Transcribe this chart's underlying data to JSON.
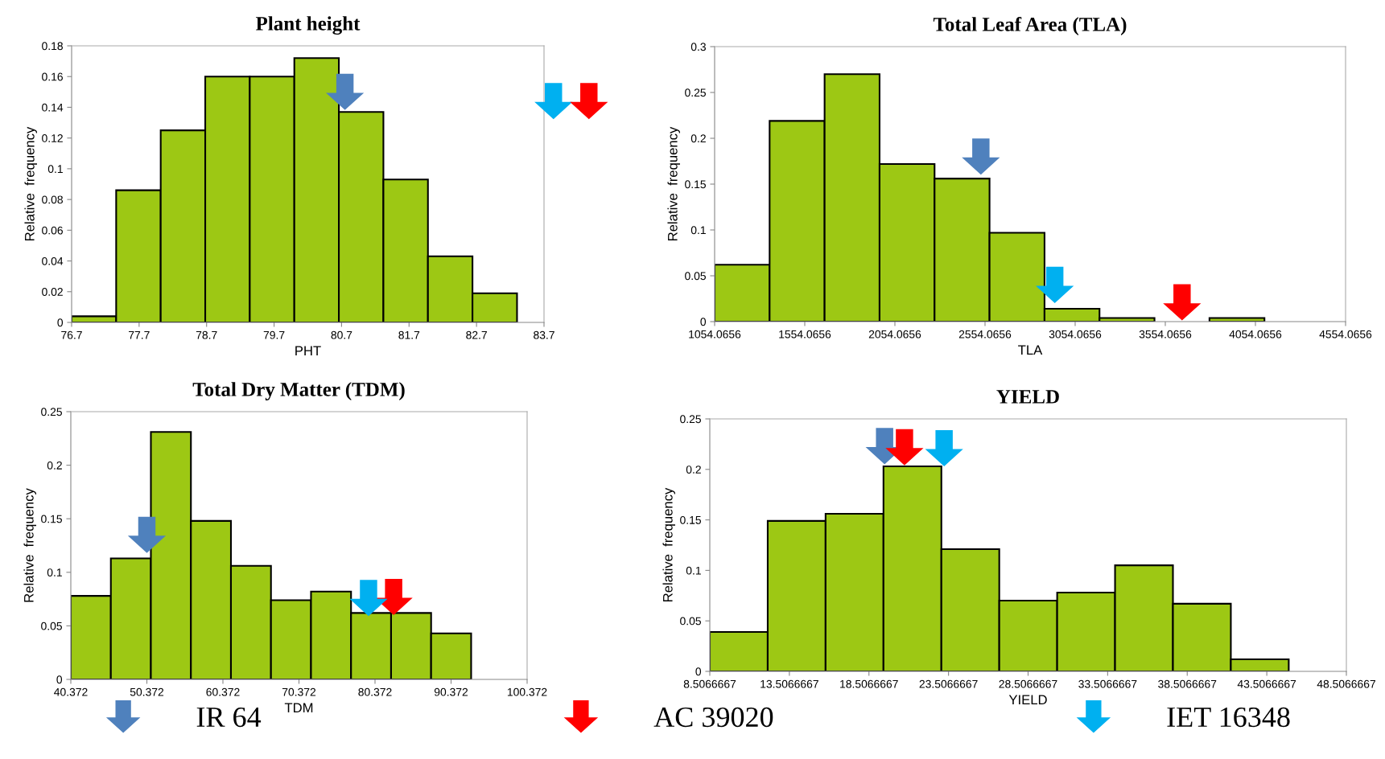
{
  "chart_data": [
    {
      "type": "histogram",
      "title": "Plant height",
      "xlabel": "PHT",
      "ylabel": "Relative  frequency",
      "color": "#9dc814",
      "bins": [
        76.7,
        77.36,
        78.02,
        78.68,
        79.34,
        80.0,
        80.66,
        81.32,
        81.98,
        82.64,
        83.3
      ],
      "values": [
        0.004,
        0.086,
        0.125,
        0.16,
        0.16,
        0.172,
        0.137,
        0.093,
        0.043,
        0.019
      ],
      "xlim": [
        76.7,
        83.7
      ],
      "xticks": [
        76.7,
        77.7,
        78.7,
        79.7,
        80.7,
        81.7,
        82.7,
        83.7
      ],
      "ylim": [
        0,
        0.18
      ],
      "yticks": [
        0,
        0.02,
        0.04,
        0.06,
        0.08,
        0.1,
        0.12,
        0.14,
        0.16,
        0.18
      ],
      "grid": false,
      "series": [
        {
          "type": "scatter",
          "color": "#4f81bd",
          "x": [
            80.75
          ],
          "values": [
            0.15
          ]
        },
        {
          "type": "scatter",
          "color": "#00b0f0",
          "x": [
            null
          ],
          "values": [
            null
          ]
        },
        {
          "type": "scatter",
          "color": "#ff0000",
          "x": [
            null
          ],
          "values": [
            null
          ]
        }
      ]
    },
    {
      "type": "histogram",
      "title": "Total Leaf Area (TLA)",
      "xlabel": "TLA",
      "ylabel": "Relative  frequency",
      "color": "#9dc814",
      "bins": [
        1054.0656,
        1359.0656,
        1664.0656,
        1969.0656,
        2274.0656,
        2579.0656,
        2884.0656,
        3189.0656,
        3494.0656,
        3799.0656,
        4104.0656
      ],
      "values": [
        0.062,
        0.219,
        0.27,
        0.172,
        0.156,
        0.097,
        0.014,
        0.004,
        0,
        0.004
      ],
      "xlim": [
        1054.0656,
        4554.0656
      ],
      "xticks": [
        1054.0656,
        1554.0656,
        2054.0656,
        2554.0656,
        3054.0656,
        3554.0656,
        4054.0656,
        4554.0656
      ],
      "ylim": [
        0,
        0.3
      ],
      "yticks": [
        0,
        0.05,
        0.1,
        0.15,
        0.2,
        0.25,
        0.3
      ],
      "grid": false,
      "series": [
        {
          "type": "scatter",
          "color": "#4f81bd",
          "x": [
            2531
          ],
          "values": [
            0.18
          ]
        },
        {
          "type": "scatter",
          "color": "#ff0000",
          "x": [
            3647
          ],
          "values": [
            0.021
          ]
        },
        {
          "type": "scatter",
          "color": "#00b0f0",
          "x": [
            2941
          ],
          "values": [
            0.04
          ]
        }
      ]
    },
    {
      "type": "histogram",
      "title": "Total Dry Matter (TDM)",
      "xlabel": "TDM",
      "ylabel": "Relative  frequency",
      "color": "#9dc814",
      "bins": [
        40.372,
        45.636,
        50.9,
        56.164,
        61.428,
        66.692,
        71.956,
        77.22,
        82.484,
        87.748,
        93.012
      ],
      "values": [
        0.078,
        0.113,
        0.231,
        0.148,
        0.106,
        0.074,
        0.082,
        0.062,
        0.062,
        0.043
      ],
      "xlim": [
        40.372,
        100.372
      ],
      "xticks": [
        40.372,
        50.372,
        60.372,
        70.372,
        80.372,
        90.372,
        100.372
      ],
      "ylim": [
        0,
        0.25
      ],
      "yticks": [
        0,
        0.05,
        0.1,
        0.15,
        0.2,
        0.25
      ],
      "grid": false,
      "series": [
        {
          "type": "scatter",
          "color": "#4f81bd",
          "x": [
            50.37
          ],
          "values": [
            0.135
          ]
        },
        {
          "type": "scatter",
          "color": "#ff0000",
          "x": [
            82.82
          ],
          "values": [
            0.077
          ]
        },
        {
          "type": "scatter",
          "color": "#00b0f0",
          "x": [
            79.52
          ],
          "values": [
            0.076
          ]
        }
      ]
    },
    {
      "type": "histogram",
      "title": "YIELD",
      "xlabel": "YIELD",
      "ylabel": "Relative  frequency",
      "color": "#9dc814",
      "bins": [
        8.5066667,
        12.145,
        15.782,
        19.42,
        23.058,
        26.696,
        30.334,
        33.971,
        37.609,
        41.247,
        44.885
      ],
      "values": [
        0.039,
        0.149,
        0.156,
        0.203,
        0.121,
        0.07,
        0.078,
        0.105,
        0.067,
        0.012
      ],
      "xlim": [
        8.5066667,
        48.5066667
      ],
      "xticks": [
        8.5066667,
        13.5066667,
        18.5066667,
        23.5066667,
        28.5066667,
        33.5066667,
        38.5066667,
        43.5066667,
        48.5066667
      ],
      "ylim": [
        0,
        0.25
      ],
      "yticks": [
        0,
        0.05,
        0.1,
        0.15,
        0.2,
        0.25
      ],
      "grid": false,
      "legend": "bottom",
      "series": [
        {
          "name": "IR 64",
          "type": "scatter",
          "color": "#4f81bd",
          "x": [
            19.49
          ],
          "values": [
            0.223
          ]
        },
        {
          "name": "AC 39020",
          "type": "scatter",
          "color": "#ff0000",
          "x": [
            20.74
          ],
          "values": [
            0.222
          ]
        },
        {
          "name": "IET 16348",
          "type": "scatter",
          "color": "#00b0f0",
          "x": [
            23.23
          ],
          "values": [
            0.221
          ]
        }
      ]
    }
  ]
}
